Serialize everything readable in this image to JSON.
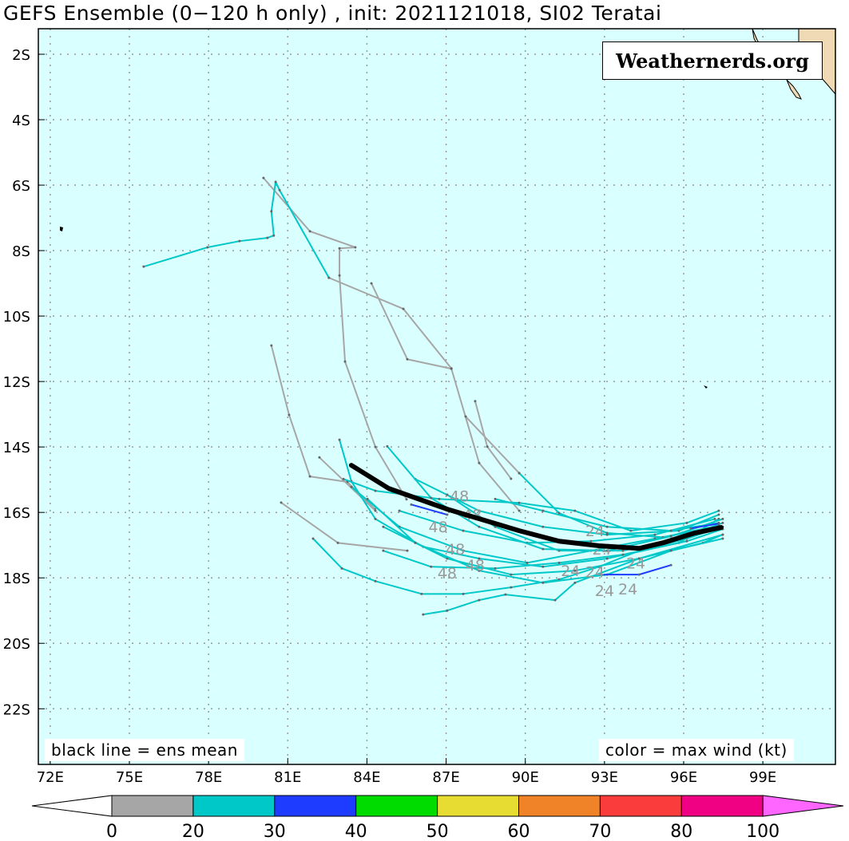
{
  "title": "GEFS Ensemble (0−120 h only) , init: 2021121018, SI02 Teratai",
  "watermark": "Weathernerds.org",
  "notes": {
    "left": "black line = ens mean",
    "right": "color = max wind (kt)"
  },
  "colors": {
    "ocean": "#d9ffff",
    "land": "#f0d9b5",
    "mean": "#000000"
  },
  "chart_data": {
    "type": "map-tracks",
    "lon_range": [
      71.55,
      101.75
    ],
    "lat_range": [
      -23.7,
      -1.22
    ],
    "grid": true,
    "lat_ticks": [
      {
        "v": -2,
        "label": "2S"
      },
      {
        "v": -4,
        "label": "4S"
      },
      {
        "v": -6,
        "label": "6S"
      },
      {
        "v": -8,
        "label": "8S"
      },
      {
        "v": -10,
        "label": "10S"
      },
      {
        "v": -12,
        "label": "12S"
      },
      {
        "v": -14,
        "label": "14S"
      },
      {
        "v": -16,
        "label": "16S"
      },
      {
        "v": -18,
        "label": "18S"
      },
      {
        "v": -20,
        "label": "20S"
      },
      {
        "v": -22,
        "label": "22S"
      }
    ],
    "lon_ticks": [
      {
        "v": 72,
        "label": "72E"
      },
      {
        "v": 75,
        "label": "75E"
      },
      {
        "v": 78,
        "label": "78E"
      },
      {
        "v": 81,
        "label": "81E"
      },
      {
        "v": 84,
        "label": "84E"
      },
      {
        "v": 87,
        "label": "87E"
      },
      {
        "v": 90,
        "label": "90E"
      },
      {
        "v": 93,
        "label": "93E"
      },
      {
        "v": 96,
        "label": "96E"
      },
      {
        "v": 99,
        "label": "99E"
      }
    ],
    "mean_track": [
      [
        83.41,
        -14.56
      ],
      [
        84.83,
        -15.27
      ],
      [
        87.04,
        -15.9
      ],
      [
        89.77,
        -16.56
      ],
      [
        91.28,
        -16.88
      ],
      [
        92.79,
        -17.02
      ],
      [
        94.31,
        -17.1
      ],
      [
        95.21,
        -16.93
      ],
      [
        96.42,
        -16.63
      ],
      [
        97.42,
        -16.46
      ]
    ],
    "tracks": [
      {
        "wind_class": "0-20",
        "color": "#a6a6a6",
        "points": [
          [
            80.08,
            -5.78
          ],
          [
            81.84,
            -7.41
          ],
          [
            83.56,
            -7.9
          ],
          [
            82.96,
            -7.93
          ],
          [
            82.96,
            -8.76
          ],
          [
            83.17,
            -11.39
          ],
          [
            84.32,
            -14.0
          ],
          [
            85.5,
            -15.6
          ]
        ]
      },
      {
        "wind_class": "0-20",
        "color": "#a6a6a6",
        "points": [
          [
            84.17,
            -9.0
          ],
          [
            85.53,
            -11.32
          ],
          [
            87.2,
            -11.61
          ],
          [
            88.25,
            -14.49
          ],
          [
            89.77,
            -15.95
          ]
        ]
      },
      {
        "wind_class": "0-20",
        "color": "#a6a6a6",
        "points": [
          [
            80.38,
            -10.9
          ],
          [
            81.05,
            -13.02
          ],
          [
            81.84,
            -14.9
          ],
          [
            83.26,
            -15.07
          ],
          [
            84.3,
            -15.9
          ]
        ]
      },
      {
        "wind_class": "0-20",
        "color": "#a6a6a6",
        "points": [
          [
            80.75,
            -15.7
          ],
          [
            82.9,
            -16.93
          ],
          [
            85.53,
            -17.17
          ]
        ]
      },
      {
        "wind_class": "0-20",
        "color": "#a6a6a6",
        "points": [
          [
            88.1,
            -12.6
          ],
          [
            88.56,
            -13.99
          ],
          [
            89.46,
            -14.97
          ]
        ]
      },
      {
        "wind_class": "0-20",
        "color": "#a6a6a6",
        "points": [
          [
            87.74,
            -13.07
          ],
          [
            89.77,
            -14.8
          ]
        ]
      },
      {
        "wind_class": "0-20",
        "color": "#a6a6a6",
        "points": [
          [
            82.2,
            -14.32
          ],
          [
            84.32,
            -15.95
          ]
        ]
      },
      {
        "wind_class": "0-20",
        "color": "#a6a6a6",
        "points": [
          [
            82.56,
            -8.83
          ],
          [
            85.38,
            -9.78
          ],
          [
            87.2,
            -11.6
          ]
        ]
      },
      {
        "wind_class": "20-30",
        "color": "#00c8c8",
        "points": [
          [
            75.54,
            -8.49
          ],
          [
            77.96,
            -7.9
          ],
          [
            79.17,
            -7.71
          ],
          [
            80.23,
            -7.61
          ],
          [
            80.47,
            -7.54
          ],
          [
            80.38,
            -6.8
          ],
          [
            80.54,
            -5.9
          ],
          [
            80.69,
            -6.15
          ],
          [
            82.56,
            -8.83
          ]
        ]
      },
      {
        "wind_class": "20-30",
        "color": "#00c8c8",
        "points": [
          [
            81.96,
            -16.8
          ],
          [
            83.05,
            -17.71
          ],
          [
            84.32,
            -18.1
          ],
          [
            86.07,
            -18.49
          ],
          [
            87.65,
            -18.49
          ],
          [
            89.46,
            -18.29
          ],
          [
            91.28,
            -18.05
          ],
          [
            92.79,
            -17.66
          ],
          [
            94.31,
            -17.17
          ],
          [
            96.12,
            -16.8
          ],
          [
            97.48,
            -16.44
          ]
        ]
      },
      {
        "wind_class": "20-30",
        "color": "#00c8c8",
        "points": [
          [
            86.13,
            -19.12
          ],
          [
            87.04,
            -19.0
          ],
          [
            88.25,
            -18.68
          ],
          [
            89.25,
            -18.51
          ],
          [
            91.13,
            -18.68
          ],
          [
            91.88,
            -18.15
          ],
          [
            94.31,
            -17.41
          ],
          [
            97.48,
            -16.68
          ]
        ]
      },
      {
        "wind_class": "20-30",
        "color": "#00c8c8",
        "points": [
          [
            82.96,
            -13.78
          ],
          [
            83.41,
            -15.05
          ],
          [
            84.32,
            -16.2
          ],
          [
            86.13,
            -17.05
          ],
          [
            88.25,
            -17.41
          ],
          [
            90.67,
            -17.66
          ],
          [
            93.1,
            -17.41
          ],
          [
            95.82,
            -16.93
          ],
          [
            97.33,
            -16.2
          ]
        ]
      },
      {
        "wind_class": "20-30",
        "color": "#00c8c8",
        "points": [
          [
            83.11,
            -14.98
          ],
          [
            84.32,
            -15.34
          ],
          [
            86.74,
            -15.59
          ],
          [
            89.77,
            -15.71
          ],
          [
            91.88,
            -15.95
          ],
          [
            94.0,
            -16.56
          ],
          [
            96.12,
            -16.32
          ],
          [
            97.33,
            -15.95
          ]
        ]
      },
      {
        "wind_class": "20-30",
        "color": "#00c8c8",
        "points": [
          [
            83.41,
            -15.22
          ],
          [
            85.23,
            -16.44
          ],
          [
            87.65,
            -17.17
          ],
          [
            90.07,
            -17.54
          ],
          [
            92.49,
            -17.17
          ],
          [
            94.91,
            -16.8
          ],
          [
            97.33,
            -16.44
          ]
        ]
      },
      {
        "wind_class": "20-30",
        "color": "#00c8c8",
        "points": [
          [
            84.62,
            -16.44
          ],
          [
            87.04,
            -17.41
          ],
          [
            89.46,
            -17.9
          ],
          [
            91.88,
            -17.78
          ],
          [
            94.31,
            -17.41
          ],
          [
            96.73,
            -16.93
          ],
          [
            97.48,
            -16.68
          ]
        ]
      },
      {
        "wind_class": "20-30",
        "color": "#00c8c8",
        "points": [
          [
            85.23,
            -15.95
          ],
          [
            87.65,
            -16.56
          ],
          [
            90.07,
            -16.93
          ],
          [
            92.49,
            -16.88
          ],
          [
            94.91,
            -16.68
          ],
          [
            97.18,
            -16.2
          ]
        ]
      },
      {
        "wind_class": "20-30",
        "color": "#00c8c8",
        "points": [
          [
            85.83,
            -14.98
          ],
          [
            88.25,
            -15.95
          ],
          [
            90.67,
            -16.44
          ],
          [
            93.1,
            -16.68
          ],
          [
            95.82,
            -16.56
          ],
          [
            97.33,
            -16.07
          ]
        ]
      },
      {
        "wind_class": "20-30",
        "color": "#00c8c8",
        "points": [
          [
            87.04,
            -15.46
          ],
          [
            88.86,
            -16.44
          ],
          [
            91.28,
            -17.17
          ],
          [
            93.7,
            -17.17
          ],
          [
            96.12,
            -16.73
          ],
          [
            97.48,
            -16.32
          ]
        ]
      },
      {
        "wind_class": "20-30",
        "color": "#00c8c8",
        "points": [
          [
            88.86,
            -15.59
          ],
          [
            90.67,
            -15.95
          ],
          [
            93.1,
            -16.44
          ],
          [
            95.52,
            -16.56
          ],
          [
            97.33,
            -16.32
          ]
        ]
      },
      {
        "wind_class": "20-30",
        "color": "#00c8c8",
        "points": [
          [
            84.62,
            -17.17
          ],
          [
            86.43,
            -17.66
          ],
          [
            88.86,
            -17.71
          ],
          [
            91.28,
            -17.54
          ],
          [
            93.7,
            -17.29
          ],
          [
            96.12,
            -16.88
          ],
          [
            97.48,
            -16.51
          ]
        ]
      },
      {
        "wind_class": "20-30",
        "color": "#00c8c8",
        "points": [
          [
            84.02,
            -15.59
          ],
          [
            85.83,
            -16.93
          ],
          [
            88.25,
            -17.78
          ],
          [
            90.67,
            -18.15
          ],
          [
            93.1,
            -17.9
          ],
          [
            95.52,
            -17.17
          ],
          [
            97.48,
            -16.8
          ]
        ]
      },
      {
        "wind_class": "20-30",
        "color": "#00c8c8",
        "points": [
          [
            89.77,
            -14.8
          ],
          [
            91.28,
            -16.02
          ],
          [
            93.1,
            -16.63
          ],
          [
            95.21,
            -16.76
          ],
          [
            97.33,
            -16.4
          ]
        ]
      },
      {
        "wind_class": "20-30",
        "color": "#00c8c8",
        "points": [
          [
            84.77,
            -13.98
          ],
          [
            86.43,
            -15.56
          ],
          [
            88.25,
            -16.44
          ],
          [
            90.67,
            -17.12
          ],
          [
            93.1,
            -17.17
          ],
          [
            95.52,
            -16.73
          ],
          [
            97.48,
            -16.2
          ]
        ]
      },
      {
        "wind_class": "30-40",
        "color": "#1e3cff",
        "points": [
          [
            92.88,
            -17.9
          ],
          [
            94.31,
            -17.9
          ],
          [
            95.52,
            -17.61
          ]
        ]
      },
      {
        "wind_class": "30-40",
        "color": "#1e3cff",
        "points": [
          [
            85.68,
            -15.76
          ],
          [
            87.04,
            -16.07
          ]
        ]
      },
      {
        "wind_class": "30-40",
        "color": "#1e3cff",
        "points": [
          [
            96.27,
            -16.49
          ],
          [
            97.33,
            -16.34
          ]
        ]
      }
    ],
    "hour_labels": [
      {
        "text": "48",
        "lon": 87.5,
        "lat": -15.5
      },
      {
        "text": "48",
        "lon": 86.7,
        "lat": -16.44
      },
      {
        "text": "48",
        "lon": 87.2,
        "lat": -16.07
      },
      {
        "text": "48",
        "lon": 87.35,
        "lat": -17.12
      },
      {
        "text": "48",
        "lon": 87.04,
        "lat": -17.41
      },
      {
        "text": "48",
        "lon": 88.1,
        "lat": -17.61
      },
      {
        "text": "24",
        "lon": 92.64,
        "lat": -16.56
      },
      {
        "text": "24",
        "lon": 92.9,
        "lat": -17.12
      },
      {
        "text": "24",
        "lon": 92.64,
        "lat": -17.37
      },
      {
        "text": "24",
        "lon": 93.4,
        "lat": -17.54
      },
      {
        "text": "24",
        "lon": 92.5,
        "lat": -17.78
      },
      {
        "text": "24",
        "lon": 93.0,
        "lat": -17.95
      },
      {
        "text": "24",
        "lon": 93.1,
        "lat": -18.34
      }
    ],
    "colorbar": {
      "bins": [
        {
          "from": 0,
          "to": 20,
          "color": "#a6a6a6"
        },
        {
          "from": 20,
          "to": 30,
          "color": "#00c8c8"
        },
        {
          "from": 30,
          "to": 40,
          "color": "#1e3cff"
        },
        {
          "from": 40,
          "to": 50,
          "color": "#00dc00"
        },
        {
          "from": 50,
          "to": 60,
          "color": "#e6dc32"
        },
        {
          "from": 60,
          "to": 70,
          "color": "#f08228"
        },
        {
          "from": 70,
          "to": 80,
          "color": "#fa3c3c"
        },
        {
          "from": 80,
          "to": 100,
          "color": "#f00082"
        }
      ],
      "under_color": "#ffffff",
      "over_color": "#ff66ff",
      "tick_labels": [
        "0",
        "20",
        "30",
        "40",
        "50",
        "60",
        "70",
        "80",
        "100"
      ]
    }
  }
}
